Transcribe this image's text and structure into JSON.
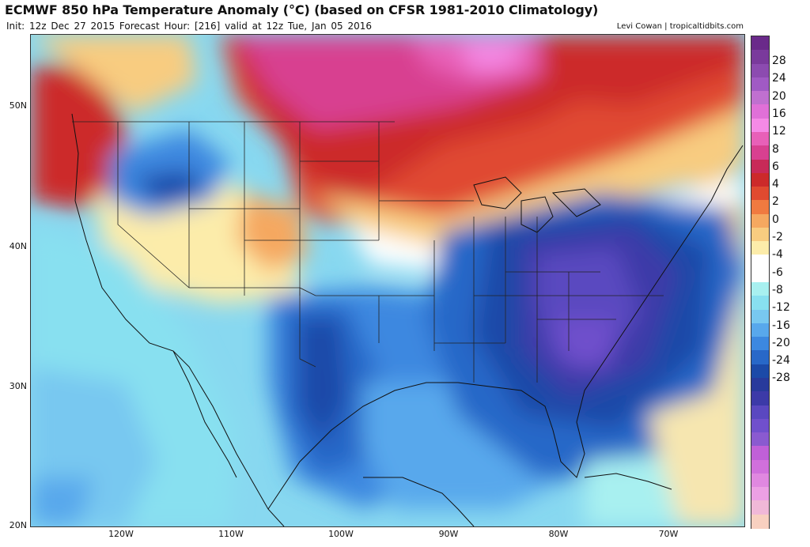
{
  "header": {
    "title": "ECMWF 850 hPa Temperature Anomaly (°C) (based on CFSR 1981-2010 Climatology)",
    "subtitle": "Init: 12z Dec 27 2015   Forecast Hour: [216]   valid at 12z Tue, Jan 05 2016",
    "credit": "Levi Cowan | tropicaltidbits.com"
  },
  "map": {
    "region": "Continental United States",
    "lat_labels": [
      "50N",
      "40N",
      "30N",
      "20N"
    ],
    "lon_labels": [
      "120W",
      "110W",
      "100W",
      "90W",
      "80W",
      "70W"
    ],
    "features": {
      "cold_anomaly_center": "Southeast United States",
      "warm_anomaly_center": "Canadian Prairies"
    }
  },
  "colorbar": {
    "labels": [
      "28",
      "24",
      "20",
      "16",
      "12",
      "8",
      "6",
      "4",
      "2",
      "0",
      "-2",
      "-4",
      "-6",
      "-8",
      "-12",
      "-16",
      "-20",
      "-24",
      "-28"
    ],
    "colors": [
      "#6a2a8a",
      "#7a3a9c",
      "#8c4bb0",
      "#a05ac4",
      "#c070d0",
      "#e070d8",
      "#f58ae6",
      "#e860b8",
      "#d84090",
      "#c82a58",
      "#cc2a2a",
      "#e04a30",
      "#f07a40",
      "#f5a860",
      "#f8cc80",
      "#fcecaa",
      "#ffffff",
      "#ffffff",
      "#a8f0f0",
      "#88e0f0",
      "#78c8f0",
      "#58a8ec",
      "#3c88e0",
      "#2868c8",
      "#1c4aa8",
      "#283a9c",
      "#3c3aa8",
      "#5a48c0",
      "#7050cc",
      "#8a5ad0",
      "#c060d8",
      "#d070dc",
      "#e088e0",
      "#eca0e4",
      "#f0b8d8",
      "#f8d0c0"
    ]
  }
}
